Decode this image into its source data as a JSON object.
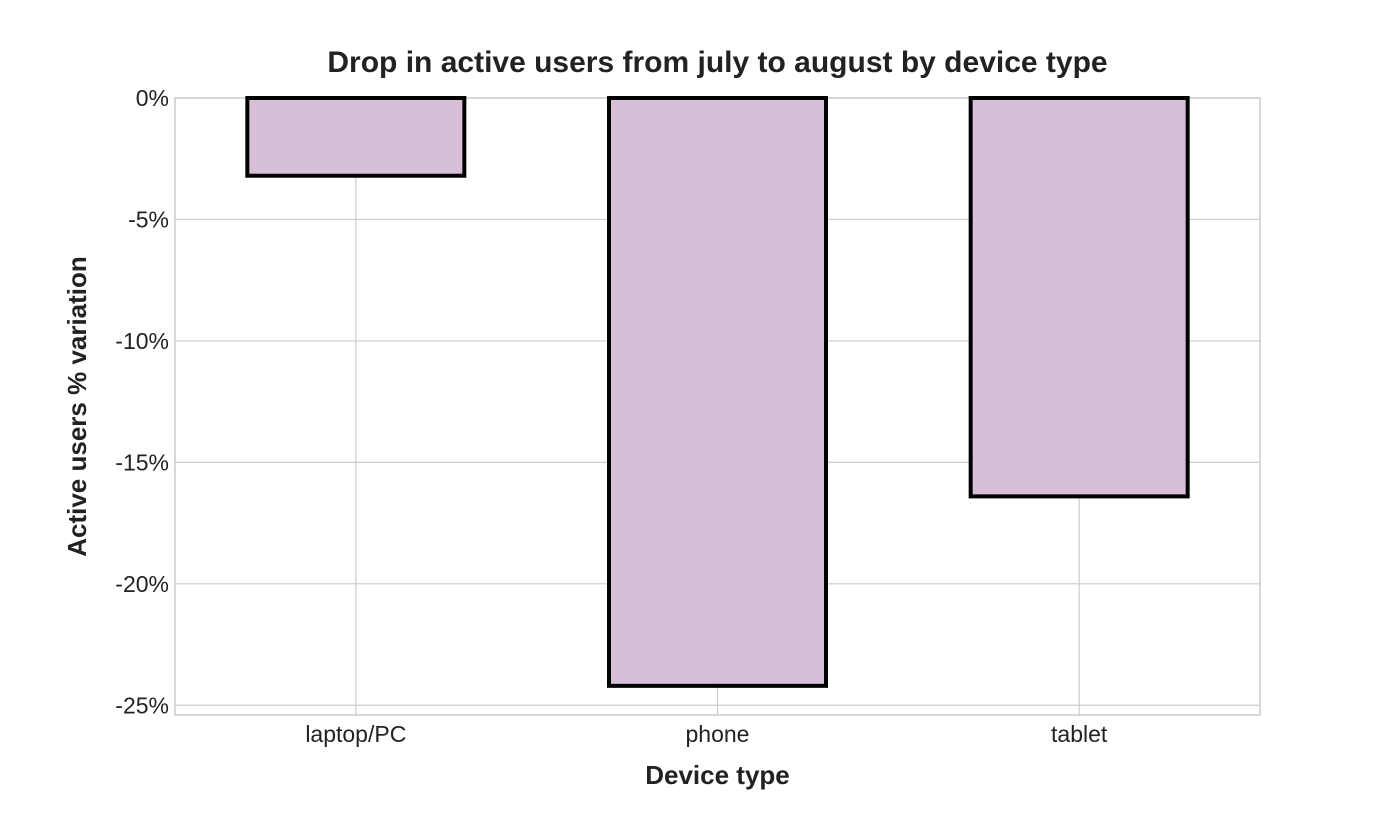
{
  "chart_data": {
    "type": "bar",
    "title": "Drop in active users from july to august by device type",
    "xlabel": "Device type",
    "ylabel": "Active users % variation",
    "categories": [
      "laptop/PC",
      "phone",
      "tablet"
    ],
    "values": [
      -3.2,
      -24.2,
      -16.4
    ],
    "ylim": [
      -25.4,
      0
    ],
    "yticks": [
      0,
      -5,
      -10,
      -15,
      -20,
      -25
    ],
    "ytick_labels": [
      "0%",
      "-5%",
      "-10%",
      "-15%",
      "-20%",
      "-25%"
    ],
    "grid": true,
    "legend": "none",
    "colors": {
      "bar_fill": "#d8bfd8",
      "bar_edge": "#000000",
      "grid": "#cccccc",
      "text": "#222222"
    }
  }
}
